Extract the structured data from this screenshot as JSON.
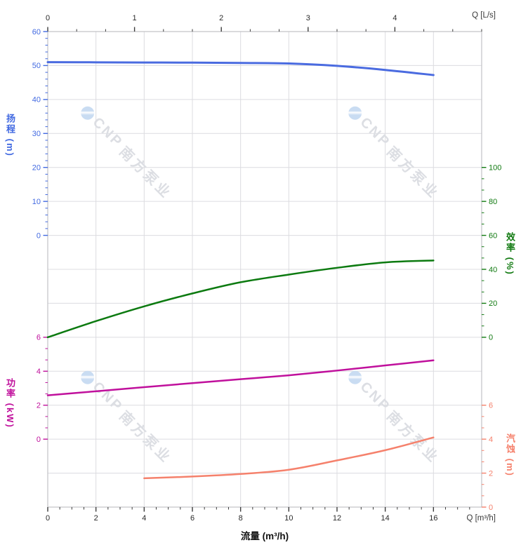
{
  "watermark": {
    "brand": "CNP",
    "brand_cn": "南方泵业"
  },
  "chart_data": {
    "type": "line",
    "title": "",
    "x_axis_bottom": {
      "label": "流量 (m³/h)",
      "unit_label": "Q [m³/h]",
      "range": [
        0,
        18
      ],
      "major_ticks": [
        0,
        2,
        4,
        6,
        8,
        10,
        12,
        14,
        16
      ],
      "minor_step": 0.5,
      "tick_color": "#3c3c3c"
    },
    "x_axis_top": {
      "unit_label": "Q [L/s]",
      "range": [
        0,
        5
      ],
      "major_ticks": [
        0,
        1,
        2,
        3,
        4
      ],
      "minor_step": 0.33333,
      "tick_color": "#3c3c3c"
    },
    "y_axes": [
      {
        "id": "head",
        "label": "扬程 (m)",
        "side": "left",
        "color": "#4169e1",
        "curve_color": "#4a6be0",
        "row_top": 0,
        "val_top": 60,
        "row_bot": 6,
        "val_bot": 0,
        "major_ticks": [
          60,
          50,
          40,
          30,
          20,
          10,
          0
        ],
        "minor_step": 2
      },
      {
        "id": "power",
        "label": "功率 (kW)",
        "side": "left",
        "color": "#c0109c",
        "curve_color": "#c0109c",
        "row_top": 9,
        "val_top": 6,
        "row_bot": 12,
        "val_bot": 0,
        "major_ticks": [
          6,
          4,
          2,
          0
        ],
        "minor_step": 0.66667
      },
      {
        "id": "eff",
        "label": "效率 (%)",
        "side": "right",
        "color": "#117a11",
        "curve_color": "#0c7a10",
        "row_top": 4,
        "val_top": 100,
        "row_bot": 9,
        "val_bot": 0,
        "major_ticks": [
          100,
          80,
          60,
          40,
          20,
          0
        ],
        "minor_step": 6.66667
      },
      {
        "id": "npsh",
        "label": "汽蚀 (m)",
        "side": "right",
        "color": "#f5816c",
        "curve_color": "#f5816c",
        "row_top": 11,
        "val_top": 6,
        "row_bot": 14,
        "val_bot": 0,
        "major_ticks": [
          6,
          4,
          2,
          0
        ],
        "minor_step": 0.66667
      }
    ],
    "series": [
      {
        "name": "扬程",
        "axis": "head",
        "width": 3,
        "points": [
          [
            0,
            51.0
          ],
          [
            2,
            50.95
          ],
          [
            4,
            50.9
          ],
          [
            6,
            50.85
          ],
          [
            8,
            50.75
          ],
          [
            10,
            50.6
          ],
          [
            12,
            49.9
          ],
          [
            14,
            48.7
          ],
          [
            16,
            47.2
          ]
        ]
      },
      {
        "name": "效率",
        "axis": "eff",
        "width": 2.5,
        "points": [
          [
            0,
            0
          ],
          [
            2,
            9.5
          ],
          [
            4,
            18.2
          ],
          [
            6,
            25.8
          ],
          [
            8,
            32.4
          ],
          [
            10,
            36.9
          ],
          [
            12,
            40.9
          ],
          [
            14,
            44.1
          ],
          [
            16,
            45.2
          ]
        ]
      },
      {
        "name": "功率",
        "axis": "power",
        "width": 2.5,
        "points": [
          [
            0,
            2.58
          ],
          [
            2,
            2.82
          ],
          [
            4,
            3.06
          ],
          [
            6,
            3.3
          ],
          [
            8,
            3.53
          ],
          [
            10,
            3.76
          ],
          [
            12,
            4.04
          ],
          [
            14,
            4.34
          ],
          [
            16,
            4.64
          ]
        ]
      },
      {
        "name": "汽蚀",
        "axis": "npsh",
        "width": 2.5,
        "points": [
          [
            4,
            1.7
          ],
          [
            6,
            1.8
          ],
          [
            8,
            1.95
          ],
          [
            10,
            2.2
          ],
          [
            12,
            2.75
          ],
          [
            14,
            3.35
          ],
          [
            16,
            4.1
          ]
        ]
      }
    ],
    "grid": {
      "color": "#dcdce0",
      "border_color": "#c2c2c6",
      "on": true,
      "legend": "none"
    }
  }
}
